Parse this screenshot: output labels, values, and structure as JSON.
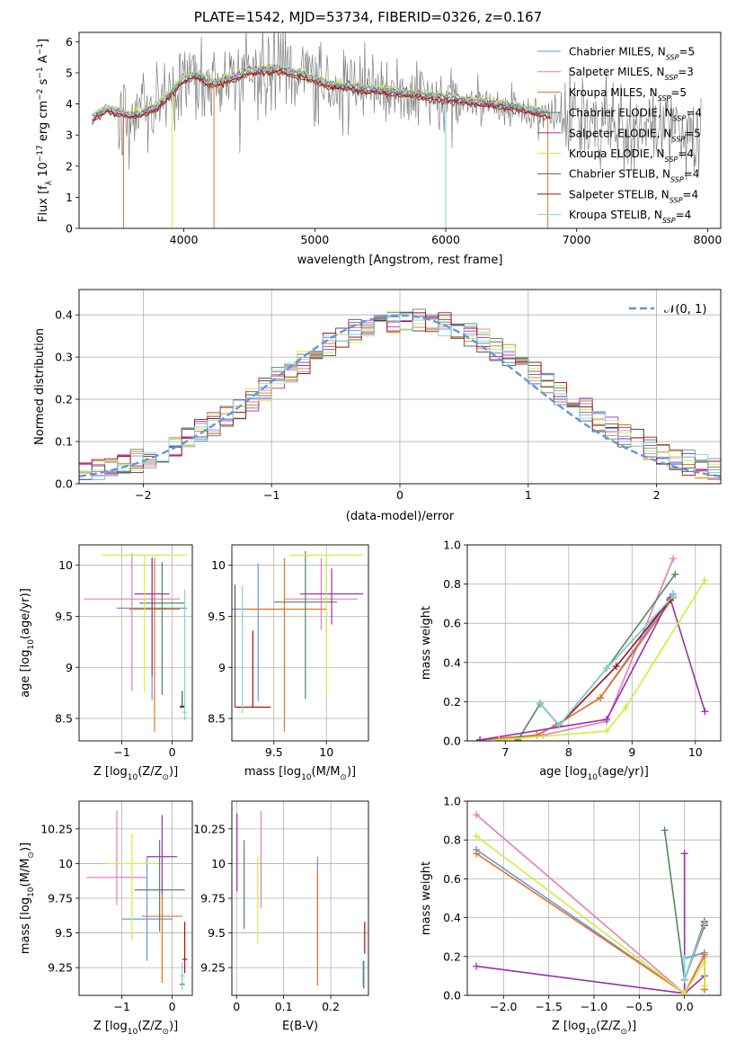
{
  "figure_title": "PLATE=1542, MJD=53734, FIBERID=0326, z=0.167",
  "colors": {
    "Chabrier MILES": "#6495ed",
    "Salpeter MILES": "#e37eb8",
    "Kroupa MILES": "#e8731e",
    "Chabrier ELODIE": "#4f8a5c",
    "Salpeter ELODIE": "#9b2fae",
    "Kroupa ELODIE": "#cfee3b",
    "Chabrier STELIB": "#555555",
    "Salpeter STELIB": "#a80f0f",
    "Kroupa STELIB": "#7fd6df",
    "data": "#808080",
    "gaussian": "#6495dc"
  },
  "chart_data": [
    {
      "id": "spectrum",
      "type": "line",
      "title": "PLATE=1542, MJD=53734, FIBERID=0326, z=0.167",
      "xlabel": "wavelength [Angstrom, rest frame]",
      "ylabel": "Flux [f_λ 10^-17 erg cm^-2 s^-1 A^-1]",
      "xlim": [
        3200,
        8100
      ],
      "ylim": [
        0,
        6.3
      ],
      "xticks": [
        4000,
        5000,
        6000,
        7000,
        8000
      ],
      "yticks": [
        0,
        1,
        2,
        3,
        4,
        5,
        6
      ],
      "legend_position": "top-right",
      "legend": [
        {
          "name": "Chabrier MILES",
          "nssp": "5"
        },
        {
          "name": "Salpeter MILES",
          "nssp": "3"
        },
        {
          "name": "Kroupa MILES",
          "nssp": "5"
        },
        {
          "name": "Chabrier ELODIE",
          "nssp": "4"
        },
        {
          "name": "Salpeter ELODIE",
          "nssp": "5"
        },
        {
          "name": "Kroupa ELODIE",
          "nssp": "4"
        },
        {
          "name": "Chabrier STELIB",
          "nssp": "4"
        },
        {
          "name": "Salpeter STELIB",
          "nssp": "4"
        },
        {
          "name": "Kroupa STELIB",
          "nssp": "4"
        }
      ],
      "continuum": {
        "x": [
          3300,
          3400,
          3500,
          3600,
          3700,
          3800,
          3900,
          4000,
          4100,
          4200,
          4300,
          4500,
          4700,
          4900,
          5100,
          5300,
          5500,
          5700,
          5900,
          6100,
          6300,
          6500,
          6600,
          6700,
          6800,
          6900,
          7000,
          7300,
          7600,
          7900
        ],
        "y": [
          3.5,
          3.8,
          3.7,
          3.6,
          3.7,
          3.9,
          4.3,
          4.8,
          4.9,
          4.6,
          4.7,
          5.0,
          5.1,
          4.9,
          4.6,
          4.5,
          4.4,
          4.3,
          4.2,
          4.1,
          4.0,
          3.9,
          3.8,
          3.7,
          3.6,
          3.6,
          3.4,
          3.3,
          3.2,
          3.1
        ]
      }
    },
    {
      "id": "residuals",
      "type": "step-histogram",
      "xlabel": "(data-model)/error",
      "ylabel": "Normed distribution",
      "xlim": [
        -2.5,
        2.5
      ],
      "ylim": [
        0,
        0.46
      ],
      "xticks": [
        -2,
        -1,
        0,
        1,
        2
      ],
      "yticks": [
        0.0,
        0.1,
        0.2,
        0.3,
        0.4
      ],
      "legend_position": "top-right",
      "gaussian_label": "N(0,1)",
      "bin_width": 0.1
    },
    {
      "id": "age-vs-Z",
      "type": "errorbar",
      "xlabel": "Z [log10(Z/Z☉)]",
      "ylabel": "age [log10(age/yr)]",
      "xlim": [
        -1.85,
        0.4
      ],
      "ylim": [
        8.28,
        10.2
      ],
      "xticks": [
        -1,
        0
      ],
      "yticks": [
        8.5,
        9.0,
        9.5,
        10.0
      ],
      "points": [
        {
          "model": "Chabrier MILES",
          "x": -0.4,
          "xerr": 0.7,
          "y": 9.58,
          "yerr": [
            0.9,
            0.5
          ]
        },
        {
          "model": "Salpeter MILES",
          "x": -0.8,
          "xerr": 0.95,
          "y": 9.67,
          "yerr": [
            0.9,
            0.45
          ]
        },
        {
          "model": "Kroupa MILES",
          "x": -0.35,
          "xerr": 0.5,
          "y": 9.57,
          "yerr": [
            1.2,
            0.5
          ]
        },
        {
          "model": "Chabrier ELODIE",
          "x": -0.2,
          "xerr": 0.45,
          "y": 9.63,
          "yerr": [
            0.9,
            0.4
          ]
        },
        {
          "model": "Salpeter ELODIE",
          "x": -0.4,
          "xerr": 0.35,
          "y": 9.72,
          "yerr": [
            0.8,
            0.35
          ]
        },
        {
          "model": "Kroupa ELODIE",
          "x": -0.55,
          "xerr": 0.85,
          "y": 10.1,
          "yerr": [
            1.35,
            0.0
          ]
        },
        {
          "model": "Chabrier STELIB",
          "x": 0.2,
          "xerr": 0.05,
          "y": 8.62,
          "yerr": [
            0.0,
            0.15
          ]
        },
        {
          "model": "Salpeter STELIB",
          "x": 0.2,
          "xerr": 0.05,
          "y": 8.61,
          "yerr": [
            0.0,
            0.0
          ]
        },
        {
          "model": "Kroupa STELIB",
          "x": 0.25,
          "xerr": 0.05,
          "y": 8.56,
          "yerr": [
            0.08,
            1.2
          ]
        }
      ]
    },
    {
      "id": "age-vs-mass",
      "type": "errorbar",
      "xlabel": "mass [log10(M/M☉)]",
      "ylabel": "",
      "xlim": [
        9.1,
        10.4
      ],
      "ylim": [
        8.28,
        10.2
      ],
      "xticks": [
        9.5,
        10.0
      ],
      "yticks": [
        8.5,
        9.0,
        9.5,
        10.0
      ],
      "points": [
        {
          "model": "Chabrier MILES",
          "x": 9.35,
          "xerr": 0.25,
          "y": 9.57,
          "yerr": [
            0.9,
            0.45
          ]
        },
        {
          "model": "Salpeter MILES",
          "x": 9.95,
          "xerr": 0.35,
          "y": 9.67,
          "yerr": [
            0.3,
            0.4
          ]
        },
        {
          "model": "Kroupa MILES",
          "x": 9.6,
          "xerr": 0.4,
          "y": 9.57,
          "yerr": [
            1.2,
            0.5
          ]
        },
        {
          "model": "Chabrier ELODIE",
          "x": 9.8,
          "xerr": 0.3,
          "y": 9.64,
          "yerr": [
            0.95,
            0.5
          ]
        },
        {
          "model": "Salpeter ELODIE",
          "x": 10.05,
          "xerr": 0.3,
          "y": 9.72,
          "yerr": [
            0.3,
            0.25
          ]
        },
        {
          "model": "Kroupa ELODIE",
          "x": 10.0,
          "xerr": 0.35,
          "y": 10.1,
          "yerr": [
            1.35,
            0.0
          ]
        },
        {
          "model": "Chabrier STELIB",
          "x": 9.13,
          "xerr": 0.0,
          "y": 8.61,
          "yerr": [
            0.0,
            1.2
          ]
        },
        {
          "model": "Salpeter STELIB",
          "x": 9.3,
          "xerr": 0.17,
          "y": 8.61,
          "yerr": [
            0.0,
            0.75
          ]
        },
        {
          "model": "Kroupa STELIB",
          "x": 9.2,
          "xerr": 0.0,
          "y": 8.55,
          "yerr": [
            0.0,
            1.25
          ]
        }
      ]
    },
    {
      "id": "weight-vs-age",
      "type": "line",
      "xlabel": "age [log10(age/yr)]",
      "ylabel": "mass weight",
      "xlim": [
        6.4,
        10.4
      ],
      "ylim": [
        0,
        1.0
      ],
      "xticks": [
        7,
        8,
        9,
        10
      ],
      "yticks": [
        0.0,
        0.2,
        0.4,
        0.6,
        0.8,
        1.0
      ],
      "series": [
        {
          "name": "Chabrier MILES",
          "x": [
            6.6,
            7.5,
            7.8,
            8.5,
            9.65
          ],
          "y": [
            0.005,
            0.03,
            0.08,
            0.22,
            0.75
          ]
        },
        {
          "name": "Salpeter MILES",
          "x": [
            6.6,
            7.6,
            8.6,
            9.65
          ],
          "y": [
            0.005,
            0.03,
            0.1,
            0.93
          ]
        },
        {
          "name": "Kroupa MILES",
          "x": [
            6.6,
            7.5,
            7.8,
            8.5,
            9.65
          ],
          "y": [
            0.005,
            0.03,
            0.08,
            0.22,
            0.73
          ]
        },
        {
          "name": "Chabrier ELODIE",
          "x": [
            7.2,
            7.55,
            7.85,
            8.6,
            9.68
          ],
          "y": [
            0.005,
            0.19,
            0.08,
            0.37,
            0.85
          ]
        },
        {
          "name": "Salpeter ELODIE",
          "x": [
            6.6,
            8.6,
            9.6,
            10.15
          ],
          "y": [
            0.005,
            0.11,
            0.73,
            0.15
          ]
        },
        {
          "name": "Kroupa ELODIE",
          "x": [
            6.9,
            8.6,
            8.9,
            10.15
          ],
          "y": [
            0.005,
            0.05,
            0.17,
            0.82
          ]
        },
        {
          "name": "Chabrier STELIB",
          "x": [
            7.55,
            7.85,
            8.6,
            9.6
          ],
          "y": [
            0.19,
            0.08,
            0.37,
            0.72
          ]
        },
        {
          "name": "Salpeter STELIB",
          "x": [
            7.55,
            7.85,
            8.75,
            9.6
          ],
          "y": [
            0.19,
            0.08,
            0.38,
            0.72
          ]
        },
        {
          "name": "Kroupa STELIB",
          "x": [
            7.55,
            7.85,
            8.6,
            9.65
          ],
          "y": [
            0.19,
            0.08,
            0.37,
            0.74
          ]
        }
      ]
    },
    {
      "id": "mass-vs-Z",
      "type": "errorbar",
      "xlabel": "Z [log10(Z/Z☉)]",
      "ylabel": "mass [log10(M/M☉)]",
      "xlim": [
        -1.85,
        0.4
      ],
      "ylim": [
        9.05,
        10.45
      ],
      "xticks": [
        -1,
        0
      ],
      "yticks": [
        9.25,
        9.5,
        9.75,
        10.0,
        10.25
      ],
      "points": [
        {
          "model": "Chabrier MILES",
          "x": -0.5,
          "xerr": 0.5,
          "y": 9.6,
          "yerr": [
            0.3,
            0.45
          ]
        },
        {
          "model": "Salpeter MILES",
          "x": -1.1,
          "xerr": 0.6,
          "y": 9.9,
          "yerr": [
            0.2,
            0.48
          ]
        },
        {
          "model": "Kroupa MILES",
          "x": -0.2,
          "xerr": 0.4,
          "y": 9.62,
          "yerr": [
            0.48,
            0.2
          ]
        },
        {
          "model": "Chabrier ELODIE",
          "x": -0.25,
          "xerr": 0.5,
          "y": 9.81,
          "yerr": [
            0.3,
            0.36
          ]
        },
        {
          "model": "Salpeter ELODIE",
          "x": -0.2,
          "xerr": 0.3,
          "y": 10.05,
          "yerr": [
            0.27,
            0.3
          ]
        },
        {
          "model": "Kroupa ELODIE",
          "x": -0.8,
          "xerr": 0.5,
          "y": 10.0,
          "yerr": [
            0.55,
            0.22
          ]
        },
        {
          "model": "Chabrier STELIB",
          "x": 0.2,
          "xerr": 0.05,
          "y": 9.13,
          "yerr": [
            0.0,
            0.05
          ]
        },
        {
          "model": "Salpeter STELIB",
          "x": 0.25,
          "xerr": 0.05,
          "y": 9.31,
          "yerr": [
            0.1,
            0.27
          ]
        },
        {
          "model": "Kroupa STELIB",
          "x": 0.2,
          "xerr": 0.05,
          "y": 9.19,
          "yerr": [
            0.1,
            0.1
          ]
        }
      ]
    },
    {
      "id": "mass-vs-EBV",
      "type": "errorbar",
      "xlabel": "E(B-V)",
      "ylabel": "",
      "xlim": [
        -0.01,
        0.28
      ],
      "ylim": [
        9.05,
        10.45
      ],
      "xticks": [
        0.0,
        0.1,
        0.2
      ],
      "yticks": [
        9.25,
        9.5,
        9.75,
        10.0,
        10.25
      ],
      "points": [
        {
          "model": "Chabrier MILES",
          "x": 0.172,
          "xerr": 0.0,
          "y": 9.6,
          "yerr": [
            0.3,
            0.45
          ]
        },
        {
          "model": "Salpeter MILES",
          "x": 0.052,
          "xerr": 0.0,
          "y": 9.9,
          "yerr": [
            0.22,
            0.48
          ]
        },
        {
          "model": "Kroupa MILES",
          "x": 0.172,
          "xerr": 0.0,
          "y": 9.62,
          "yerr": [
            0.5,
            0.34
          ]
        },
        {
          "model": "Chabrier ELODIE",
          "x": 0.016,
          "xerr": 0.0,
          "y": 9.81,
          "yerr": [
            0.28,
            0.36
          ]
        },
        {
          "model": "Salpeter ELODIE",
          "x": 0.001,
          "xerr": 0.0,
          "y": 10.05,
          "yerr": [
            0.25,
            0.31
          ]
        },
        {
          "model": "Kroupa ELODIE",
          "x": 0.045,
          "xerr": 0.0,
          "y": 9.75,
          "yerr": [
            0.33,
            0.3
          ]
        },
        {
          "model": "Chabrier STELIB",
          "x": 0.27,
          "xerr": 0.0,
          "y": 9.2,
          "yerr": [
            0.1,
            0.1
          ]
        },
        {
          "model": "Salpeter STELIB",
          "x": 0.272,
          "xerr": 0.0,
          "y": 9.45,
          "yerr": [
            0.1,
            0.13
          ]
        },
        {
          "model": "Kroupa STELIB",
          "x": 0.268,
          "xerr": 0.0,
          "y": 9.2,
          "yerr": [
            0.08,
            0.1
          ]
        }
      ]
    },
    {
      "id": "weight-vs-Z",
      "type": "line",
      "xlabel": "Z [log10(Z/Z☉)]",
      "ylabel": "mass weight",
      "xlim": [
        -2.4,
        0.4
      ],
      "ylim": [
        0,
        1.0
      ],
      "xticks": [
        -2.0,
        -1.5,
        -1.0,
        -0.5,
        0.0
      ],
      "yticks": [
        0.0,
        0.2,
        0.4,
        0.6,
        0.8,
        1.0
      ],
      "series": [
        {
          "name": "Chabrier MILES",
          "x": [
            -2.3,
            0.0,
            0.0,
            0.22,
            0.22
          ],
          "y": [
            0.75,
            0.01,
            0.19,
            0.22,
            0.03
          ]
        },
        {
          "name": "Salpeter MILES",
          "x": [
            -2.3,
            0.0,
            0.22,
            0.22
          ],
          "y": [
            0.93,
            0.01,
            0.2,
            0.03
          ]
        },
        {
          "name": "Kroupa MILES",
          "x": [
            -2.3,
            0.0,
            0.22,
            0.22
          ],
          "y": [
            0.73,
            0.01,
            0.21,
            0.03
          ]
        },
        {
          "name": "Chabrier ELODIE",
          "x": [
            -0.22,
            0.0,
            0.22
          ],
          "y": [
            0.85,
            0.08,
            0.37
          ]
        },
        {
          "name": "Salpeter ELODIE",
          "x": [
            -2.3,
            0.0,
            0.0,
            0.0,
            0.22
          ],
          "y": [
            0.15,
            0.01,
            0.73,
            0.01,
            0.1
          ]
        },
        {
          "name": "Kroupa ELODIE",
          "x": [
            -2.3,
            0.0,
            0.22,
            0.22
          ],
          "y": [
            0.82,
            0.01,
            0.17,
            0.05
          ]
        },
        {
          "name": "Chabrier STELIB",
          "x": [
            0.0,
            0.22
          ],
          "y": [
            0.08,
            0.38
          ]
        },
        {
          "name": "Salpeter STELIB",
          "x": [
            0.0,
            0.22
          ],
          "y": [
            0.08,
            0.36
          ]
        },
        {
          "name": "Kroupa STELIB",
          "x": [
            0.0,
            0.0,
            0.22
          ],
          "y": [
            0.19,
            0.08,
            0.37
          ]
        }
      ]
    }
  ]
}
